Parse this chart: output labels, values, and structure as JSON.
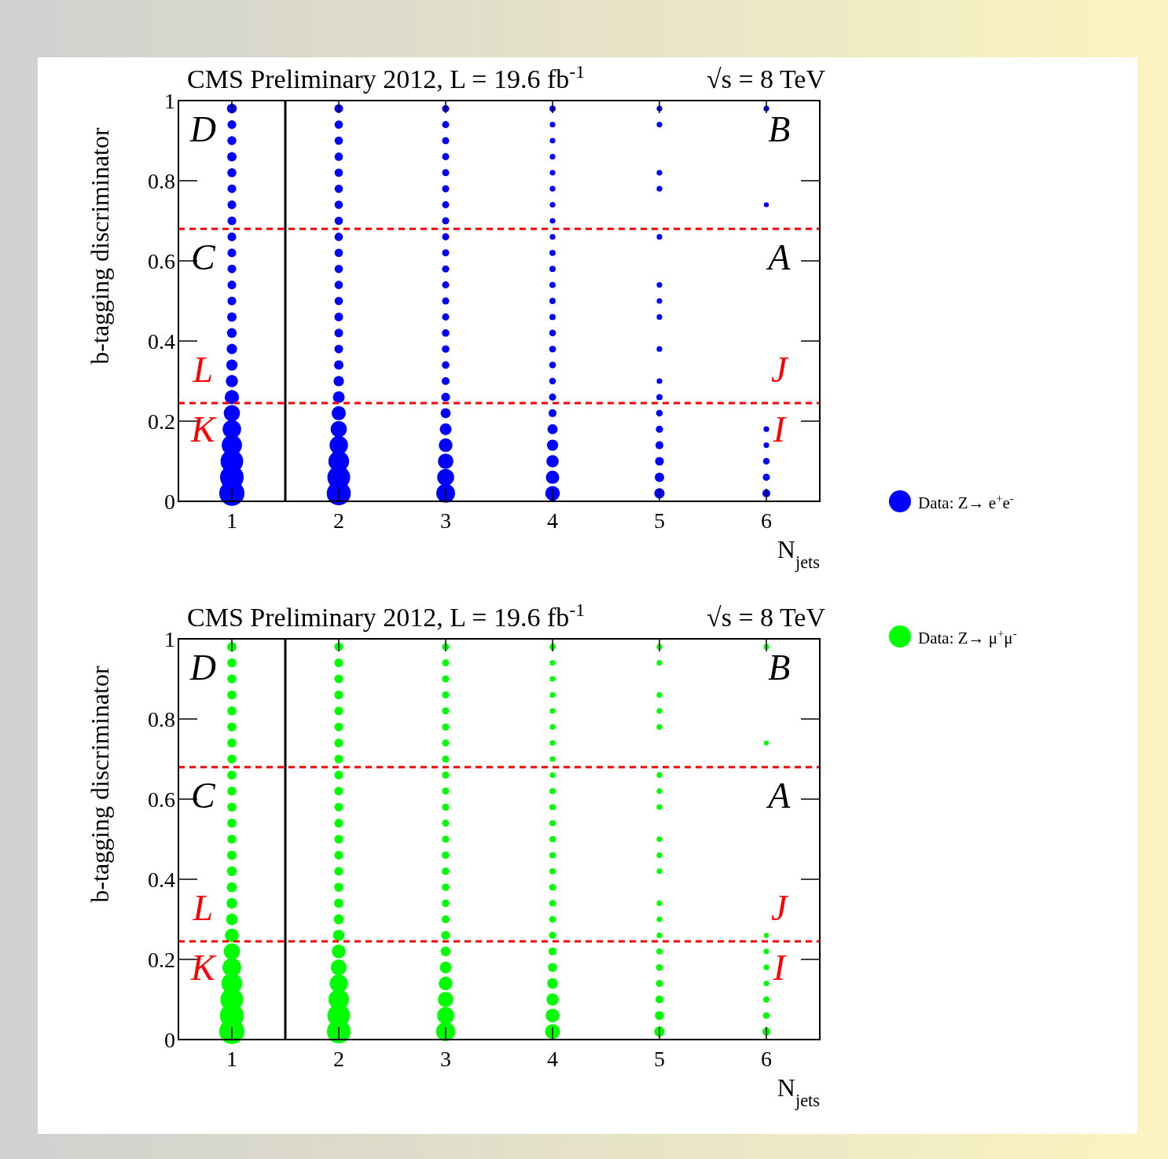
{
  "chart_data": [
    {
      "type": "bubble",
      "title": "CMS Preliminary 2012, L = 19.6 fb$^{-1}$",
      "subtitle": "√s = 8 TeV",
      "xlabel": "N$_{jets}$",
      "ylabel": "b-tagging discriminator",
      "xlim": [
        0.5,
        6.5
      ],
      "xticks": [
        1,
        2,
        3,
        4,
        5,
        6
      ],
      "ylim": [
        0,
        1
      ],
      "yticks": [
        0,
        0.2,
        0.4,
        0.6,
        0.8,
        1
      ],
      "legend": "bottom right",
      "series": [
        {
          "name": "Data: Z→ e$^{+}$e$^{-}$",
          "color": "#0000ff",
          "x": [
            1,
            1,
            1,
            1,
            1,
            1,
            1,
            1,
            1,
            1,
            1,
            1,
            1,
            1,
            1,
            1,
            1,
            1,
            1,
            1,
            1,
            1,
            1,
            1,
            1,
            2,
            2,
            2,
            2,
            2,
            2,
            2,
            2,
            2,
            2,
            2,
            2,
            2,
            2,
            2,
            2,
            2,
            2,
            2,
            2,
            2,
            2,
            2,
            2,
            2,
            3,
            3,
            3,
            3,
            3,
            3,
            3,
            3,
            3,
            3,
            3,
            3,
            3,
            3,
            3,
            3,
            3,
            3,
            3,
            3,
            3,
            3,
            3,
            3,
            3,
            4,
            4,
            4,
            4,
            4,
            4,
            4,
            4,
            4,
            4,
            4,
            4,
            4,
            4,
            4,
            4,
            4,
            4,
            4,
            4,
            4,
            4,
            4,
            4,
            4,
            5,
            5,
            5,
            5,
            5,
            5,
            5,
            5,
            5,
            5,
            5,
            5,
            5,
            5,
            5,
            5,
            5,
            6,
            6,
            6,
            6,
            6,
            6,
            6
          ],
          "values": [
            0.02,
            0.06,
            0.1,
            0.14,
            0.18,
            0.22,
            0.26,
            0.3,
            0.34,
            0.38,
            0.42,
            0.46,
            0.5,
            0.54,
            0.58,
            0.62,
            0.66,
            0.7,
            0.74,
            0.78,
            0.82,
            0.86,
            0.9,
            0.94,
            0.98,
            0.02,
            0.06,
            0.1,
            0.14,
            0.18,
            0.22,
            0.26,
            0.3,
            0.34,
            0.38,
            0.42,
            0.46,
            0.5,
            0.54,
            0.58,
            0.62,
            0.66,
            0.7,
            0.74,
            0.78,
            0.82,
            0.86,
            0.9,
            0.94,
            0.98,
            0.02,
            0.06,
            0.1,
            0.14,
            0.18,
            0.22,
            0.26,
            0.3,
            0.34,
            0.38,
            0.42,
            0.46,
            0.5,
            0.54,
            0.58,
            0.62,
            0.66,
            0.7,
            0.74,
            0.78,
            0.82,
            0.86,
            0.9,
            0.94,
            0.98,
            0.02,
            0.06,
            0.1,
            0.14,
            0.18,
            0.22,
            0.26,
            0.3,
            0.34,
            0.38,
            0.42,
            0.46,
            0.5,
            0.54,
            0.58,
            0.62,
            0.66,
            0.7,
            0.74,
            0.78,
            0.82,
            0.86,
            0.9,
            0.94,
            0.98,
            0.02,
            0.06,
            0.1,
            0.14,
            0.18,
            0.22,
            0.26,
            0.3,
            0.38,
            0.46,
            0.5,
            0.54,
            0.66,
            0.78,
            0.82,
            0.94,
            0.98,
            0.02,
            0.06,
            0.1,
            0.14,
            0.18,
            0.74,
            0.98
          ],
          "sizes": [
            1,
            0.88,
            0.81,
            0.65,
            0.54,
            0.42,
            0.32,
            0.23,
            0.2,
            0.17,
            0.15,
            0.14,
            0.12,
            0.12,
            0.12,
            0.12,
            0.12,
            0.12,
            0.12,
            0.12,
            0.13,
            0.14,
            0.13,
            0.12,
            0.15,
            0.91,
            0.82,
            0.68,
            0.54,
            0.42,
            0.32,
            0.22,
            0.17,
            0.14,
            0.12,
            0.12,
            0.12,
            0.11,
            0.11,
            0.11,
            0.11,
            0.11,
            0.11,
            0.11,
            0.11,
            0.11,
            0.11,
            0.11,
            0.11,
            0.12,
            0.56,
            0.45,
            0.38,
            0.3,
            0.22,
            0.16,
            0.12,
            0.1,
            0.09,
            0.09,
            0.09,
            0.08,
            0.08,
            0.08,
            0.08,
            0.08,
            0.08,
            0.08,
            0.08,
            0.08,
            0.08,
            0.08,
            0.08,
            0.08,
            0.08,
            0.34,
            0.28,
            0.24,
            0.2,
            0.16,
            0.1,
            0.08,
            0.07,
            0.07,
            0.07,
            0.07,
            0.06,
            0.06,
            0.06,
            0.06,
            0.06,
            0.05,
            0.05,
            0.05,
            0.05,
            0.05,
            0.05,
            0.05,
            0.05,
            0.06,
            0.17,
            0.14,
            0.12,
            0.1,
            0.08,
            0.07,
            0.06,
            0.05,
            0.05,
            0.05,
            0.05,
            0.05,
            0.05,
            0.05,
            0.05,
            0.05,
            0.05,
            0.1,
            0.08,
            0.07,
            0.05,
            0.05,
            0.04,
            0.05
          ]
        }
      ],
      "ref_lines": [
        {
          "axis": "y",
          "value": 0.68,
          "color": "#ff0000",
          "line_style": "dashed"
        },
        {
          "axis": "y",
          "value": 0.245,
          "color": "#ff0000",
          "line_style": "dashed"
        },
        {
          "axis": "x",
          "value": 1.5,
          "color": "#000000",
          "line_style": "solid"
        }
      ],
      "annotations": [
        "D",
        "B",
        "C",
        "A",
        "L",
        "J",
        "K",
        "I"
      ]
    },
    {
      "type": "bubble",
      "title": "CMS Preliminary 2012, L = 19.6 fb$^{-1}$",
      "subtitle": "√s = 8 TeV",
      "xlabel": "N$_{jets}$",
      "ylabel": "b-tagging discriminator",
      "xlim": [
        0.5,
        6.5
      ],
      "xticks": [
        1,
        2,
        3,
        4,
        5,
        6
      ],
      "ylim": [
        0,
        1
      ],
      "yticks": [
        0,
        0.2,
        0.4,
        0.6,
        0.8,
        1
      ],
      "legend": "top right",
      "series": [
        {
          "name": "Data: Z→ μ$^{+}$μ$^{-}$",
          "color": "#00ff00",
          "x": [
            1,
            1,
            1,
            1,
            1,
            1,
            1,
            1,
            1,
            1,
            1,
            1,
            1,
            1,
            1,
            1,
            1,
            1,
            1,
            1,
            1,
            1,
            1,
            1,
            1,
            2,
            2,
            2,
            2,
            2,
            2,
            2,
            2,
            2,
            2,
            2,
            2,
            2,
            2,
            2,
            2,
            2,
            2,
            2,
            2,
            2,
            2,
            2,
            2,
            2,
            3,
            3,
            3,
            3,
            3,
            3,
            3,
            3,
            3,
            3,
            3,
            3,
            3,
            3,
            3,
            3,
            3,
            3,
            3,
            3,
            3,
            3,
            3,
            3,
            3,
            4,
            4,
            4,
            4,
            4,
            4,
            4,
            4,
            4,
            4,
            4,
            4,
            4,
            4,
            4,
            4,
            4,
            4,
            4,
            4,
            4,
            4,
            4,
            4,
            4,
            5,
            5,
            5,
            5,
            5,
            5,
            5,
            5,
            5,
            5,
            5,
            5,
            5,
            5,
            5,
            5,
            5,
            5,
            5,
            5,
            6,
            6,
            6,
            6,
            6,
            6,
            6,
            6,
            6
          ],
          "values": [
            0.02,
            0.06,
            0.1,
            0.14,
            0.18,
            0.22,
            0.26,
            0.3,
            0.34,
            0.38,
            0.42,
            0.46,
            0.5,
            0.54,
            0.58,
            0.62,
            0.66,
            0.7,
            0.74,
            0.78,
            0.82,
            0.86,
            0.9,
            0.94,
            0.98,
            0.02,
            0.06,
            0.1,
            0.14,
            0.18,
            0.22,
            0.26,
            0.3,
            0.34,
            0.38,
            0.42,
            0.46,
            0.5,
            0.54,
            0.58,
            0.62,
            0.66,
            0.7,
            0.74,
            0.78,
            0.82,
            0.86,
            0.9,
            0.94,
            0.98,
            0.02,
            0.06,
            0.1,
            0.14,
            0.18,
            0.22,
            0.26,
            0.3,
            0.34,
            0.38,
            0.42,
            0.46,
            0.5,
            0.54,
            0.58,
            0.62,
            0.66,
            0.7,
            0.74,
            0.78,
            0.82,
            0.86,
            0.9,
            0.94,
            0.98,
            0.02,
            0.06,
            0.1,
            0.14,
            0.18,
            0.22,
            0.26,
            0.3,
            0.34,
            0.38,
            0.42,
            0.46,
            0.5,
            0.54,
            0.58,
            0.62,
            0.66,
            0.7,
            0.74,
            0.78,
            0.82,
            0.86,
            0.9,
            0.94,
            0.98,
            0.02,
            0.06,
            0.1,
            0.14,
            0.18,
            0.22,
            0.26,
            0.3,
            0.34,
            0.42,
            0.46,
            0.5,
            0.58,
            0.62,
            0.66,
            0.78,
            0.82,
            0.86,
            0.94,
            0.98,
            0.02,
            0.06,
            0.1,
            0.14,
            0.18,
            0.22,
            0.26,
            0.74,
            0.98
          ],
          "sizes": [
            1,
            0.9,
            0.82,
            0.68,
            0.55,
            0.42,
            0.3,
            0.22,
            0.18,
            0.16,
            0.15,
            0.14,
            0.13,
            0.13,
            0.13,
            0.13,
            0.13,
            0.13,
            0.13,
            0.13,
            0.13,
            0.13,
            0.13,
            0.13,
            0.14,
            0.88,
            0.8,
            0.66,
            0.52,
            0.4,
            0.3,
            0.2,
            0.16,
            0.14,
            0.13,
            0.12,
            0.12,
            0.12,
            0.12,
            0.12,
            0.12,
            0.12,
            0.12,
            0.12,
            0.12,
            0.12,
            0.12,
            0.12,
            0.12,
            0.12,
            0.58,
            0.46,
            0.38,
            0.3,
            0.22,
            0.15,
            0.12,
            0.1,
            0.09,
            0.09,
            0.09,
            0.09,
            0.08,
            0.08,
            0.08,
            0.08,
            0.08,
            0.08,
            0.08,
            0.08,
            0.08,
            0.08,
            0.08,
            0.08,
            0.08,
            0.36,
            0.3,
            0.24,
            0.18,
            0.13,
            0.1,
            0.08,
            0.07,
            0.07,
            0.07,
            0.06,
            0.06,
            0.06,
            0.06,
            0.06,
            0.06,
            0.05,
            0.05,
            0.05,
            0.05,
            0.05,
            0.05,
            0.05,
            0.05,
            0.06,
            0.17,
            0.13,
            0.1,
            0.08,
            0.07,
            0.06,
            0.05,
            0.05,
            0.05,
            0.05,
            0.05,
            0.05,
            0.05,
            0.05,
            0.05,
            0.05,
            0.05,
            0.05,
            0.05,
            0.05,
            0.1,
            0.07,
            0.06,
            0.05,
            0.05,
            0.05,
            0.04,
            0.04,
            0.05
          ]
        }
      ],
      "ref_lines": [
        {
          "axis": "y",
          "value": 0.68,
          "color": "#ff0000",
          "line_style": "dashed"
        },
        {
          "axis": "y",
          "value": 0.245,
          "color": "#ff0000",
          "line_style": "dashed"
        },
        {
          "axis": "x",
          "value": 1.5,
          "color": "#000000",
          "line_style": "solid"
        }
      ],
      "annotations": [
        "D",
        "B",
        "C",
        "A",
        "L",
        "J",
        "K",
        "I"
      ]
    }
  ]
}
